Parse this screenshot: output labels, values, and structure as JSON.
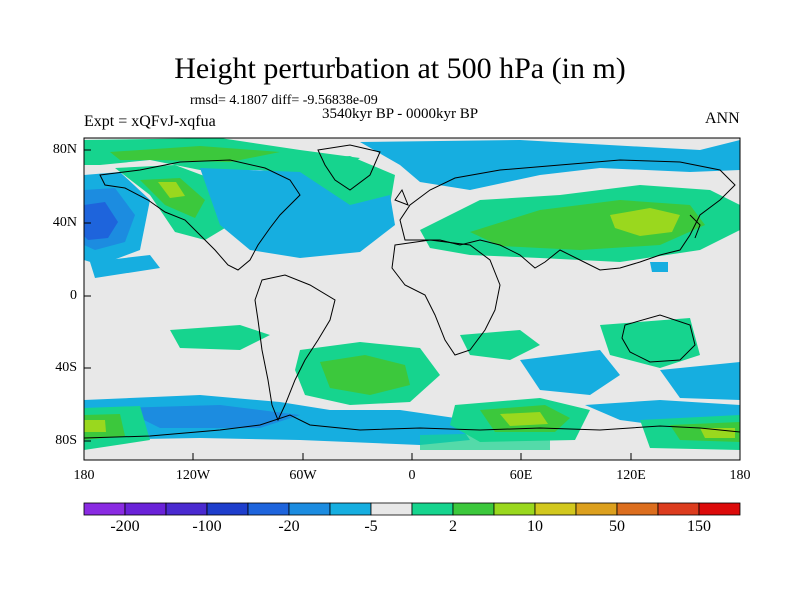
{
  "title": "Height perturbation at 500 hPa (in m)",
  "stats": "rmsd= 4.1807  diff= -9.56838e-09",
  "period": "3540kyr BP - 0000kyr BP",
  "experiment": "Expt = xQFvJ-xqfua",
  "season": "ANN",
  "map": {
    "lat_ticks": [
      "80N",
      "40N",
      "0",
      "40S",
      "80S"
    ],
    "lon_ticks": [
      "180",
      "120W",
      "60W",
      "0",
      "60E",
      "120E",
      "180"
    ]
  },
  "colorbar": {
    "labels": [
      "-200",
      "-100",
      "-20",
      "-5",
      "2",
      "10",
      "50",
      "150"
    ],
    "colors": [
      "#8a2be2",
      "#6a22d8",
      "#4a2ad0",
      "#1e3ecc",
      "#1e64dc",
      "#1c8ce0",
      "#16aee0",
      "#e8e8e8",
      "#16d48e",
      "#3cc83c",
      "#9ad81e",
      "#d2c81e",
      "#dca01e",
      "#dc6e1e",
      "#dc3c1e",
      "#dc0a0a"
    ]
  },
  "colors": {
    "background": "#e8e8e8",
    "coast": "#000000"
  }
}
